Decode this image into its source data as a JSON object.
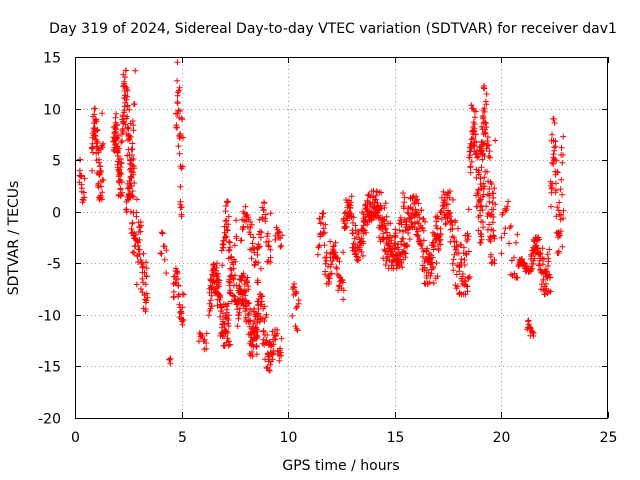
{
  "chart_data": {
    "type": "scatter",
    "title": "Day 319 of 2024, Sidereal Day-to-day VTEC variation (SDTVAR) for receiver dav1",
    "xlabel": "GPS time / hours",
    "ylabel": "SDTVAR / TECUs",
    "xlim": [
      0,
      25
    ],
    "ylim": [
      -20,
      15
    ],
    "xticks": [
      0,
      5,
      10,
      15,
      20,
      25
    ],
    "yticks": [
      -20,
      -15,
      -10,
      -5,
      0,
      5,
      10,
      15
    ],
    "grid": true,
    "marker": "+",
    "color": "#ff0000",
    "segments": [
      {
        "x0": 0.2,
        "x1": 0.45,
        "ymin": 0.5,
        "ymax": 5.2,
        "n": 18
      },
      {
        "x0": 0.8,
        "x1": 1.3,
        "ymin": 1,
        "ymax": 10,
        "n": 70
      },
      {
        "x0": 1.8,
        "x1": 2.2,
        "ymin": 1.5,
        "ymax": 9.5,
        "n": 70
      },
      {
        "x0": 2.2,
        "x1": 2.8,
        "ymin": 1,
        "ymax": 13.7,
        "n": 90
      },
      {
        "x0": 2.4,
        "x1": 2.9,
        "ymin": -4,
        "ymax": 3,
        "n": 40
      },
      {
        "x0": 2.9,
        "x1": 3.4,
        "ymin": -10,
        "ymax": -1,
        "n": 45
      },
      {
        "x0": 4.0,
        "x1": 4.3,
        "ymin": -6.5,
        "ymax": -2,
        "n": 10
      },
      {
        "x0": 4.4,
        "x1": 4.5,
        "ymin": -15,
        "ymax": -14,
        "n": 4
      },
      {
        "x0": 4.6,
        "x1": 5.1,
        "ymin": -11,
        "ymax": -5.5,
        "n": 35
      },
      {
        "x0": 4.75,
        "x1": 5.05,
        "ymin": -0.5,
        "ymax": 14.5,
        "n": 35
      },
      {
        "x0": 5.8,
        "x1": 6.2,
        "ymin": -13.5,
        "ymax": -11.5,
        "n": 12
      },
      {
        "x0": 6.3,
        "x1": 7.3,
        "ymin": -13,
        "ymax": -5,
        "n": 120
      },
      {
        "x0": 6.9,
        "x1": 7.6,
        "ymin": -9,
        "ymax": 1,
        "n": 60
      },
      {
        "x0": 7.6,
        "x1": 8.6,
        "ymin": -14,
        "ymax": -6,
        "n": 120
      },
      {
        "x0": 7.8,
        "x1": 8.7,
        "ymin": -6,
        "ymax": 0.5,
        "n": 45
      },
      {
        "x0": 8.5,
        "x1": 9.3,
        "ymin": -15.5,
        "ymax": -8,
        "n": 70
      },
      {
        "x0": 8.7,
        "x1": 9.2,
        "ymin": -5,
        "ymax": 1,
        "n": 25
      },
      {
        "x0": 9.3,
        "x1": 9.7,
        "ymin": -15,
        "ymax": -11,
        "n": 18
      },
      {
        "x0": 9.4,
        "x1": 9.7,
        "ymin": -3.5,
        "ymax": -1.5,
        "n": 12
      },
      {
        "x0": 10.2,
        "x1": 10.5,
        "ymin": -12,
        "ymax": -6,
        "n": 16
      },
      {
        "x0": 11.4,
        "x1": 12.0,
        "ymin": -7,
        "ymax": 0,
        "n": 40
      },
      {
        "x0": 12.0,
        "x1": 12.6,
        "ymin": -8.5,
        "ymax": -3,
        "n": 40
      },
      {
        "x0": 12.6,
        "x1": 13.5,
        "ymin": -5,
        "ymax": 1.5,
        "n": 80
      },
      {
        "x0": 13.5,
        "x1": 15.5,
        "ymin": -5.5,
        "ymax": 2,
        "n": 220
      },
      {
        "x0": 15.5,
        "x1": 17.0,
        "ymin": -7,
        "ymax": 1.5,
        "n": 140
      },
      {
        "x0": 17.0,
        "x1": 18.5,
        "ymin": -8,
        "ymax": 2,
        "n": 120
      },
      {
        "x0": 18.5,
        "x1": 19.2,
        "ymin": -3,
        "ymax": 10.5,
        "n": 90
      },
      {
        "x0": 19.0,
        "x1": 19.7,
        "ymin": -5,
        "ymax": 12.2,
        "n": 90
      },
      {
        "x0": 20.0,
        "x1": 20.8,
        "ymin": -7.5,
        "ymax": 1,
        "n": 25
      },
      {
        "x0": 20.8,
        "x1": 21.4,
        "ymin": -6,
        "ymax": -4.5,
        "n": 30
      },
      {
        "x0": 21.2,
        "x1": 21.5,
        "ymin": -12.3,
        "ymax": -10.5,
        "n": 14
      },
      {
        "x0": 21.4,
        "x1": 22.3,
        "ymin": -8,
        "ymax": -2.5,
        "n": 80
      },
      {
        "x0": 22.3,
        "x1": 22.9,
        "ymin": -4,
        "ymax": 9,
        "n": 60
      }
    ]
  }
}
